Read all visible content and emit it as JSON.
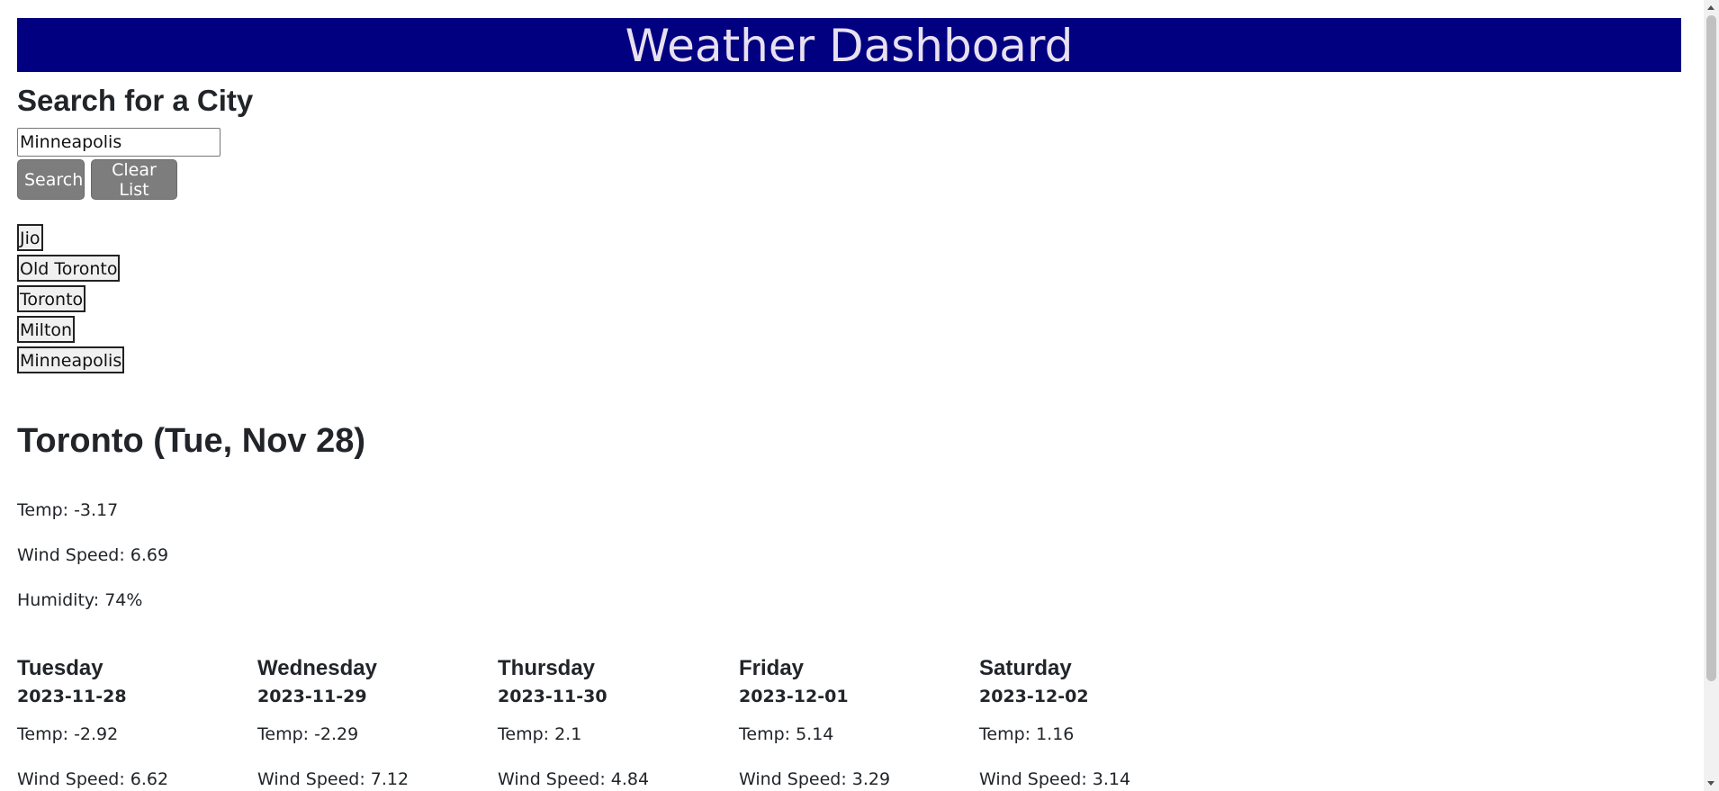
{
  "header": {
    "title": "Weather Dashboard"
  },
  "search": {
    "title": "Search for a City",
    "value": "Minneapolis",
    "search_label": "Search",
    "clear_label": "Clear List"
  },
  "history": [
    "Jio",
    "Old Toronto",
    "Toronto",
    "Milton",
    "Minneapolis"
  ],
  "current": {
    "title": "Toronto (Tue, Nov 28)",
    "temp": "Temp: -3.17",
    "wind": "Wind Speed: 6.69",
    "humidity": "Humidity: 74%"
  },
  "forecast": [
    {
      "day": "Tuesday",
      "date": "2023-11-28",
      "temp": "Temp: -2.92",
      "wind": "Wind Speed: 6.62"
    },
    {
      "day": "Wednesday",
      "date": "2023-11-29",
      "temp": "Temp: -2.29",
      "wind": "Wind Speed: 7.12"
    },
    {
      "day": "Thursday",
      "date": "2023-11-30",
      "temp": "Temp: 2.1",
      "wind": "Wind Speed: 4.84"
    },
    {
      "day": "Friday",
      "date": "2023-12-01",
      "temp": "Temp: 5.14",
      "wind": "Wind Speed: 3.29"
    },
    {
      "day": "Saturday",
      "date": "2023-12-02",
      "temp": "Temp: 1.16",
      "wind": "Wind Speed: 3.14"
    }
  ],
  "colors": {
    "header_bg": "#000080",
    "header_text": "#e8e0f0",
    "button_bg": "#7d7d7d"
  }
}
